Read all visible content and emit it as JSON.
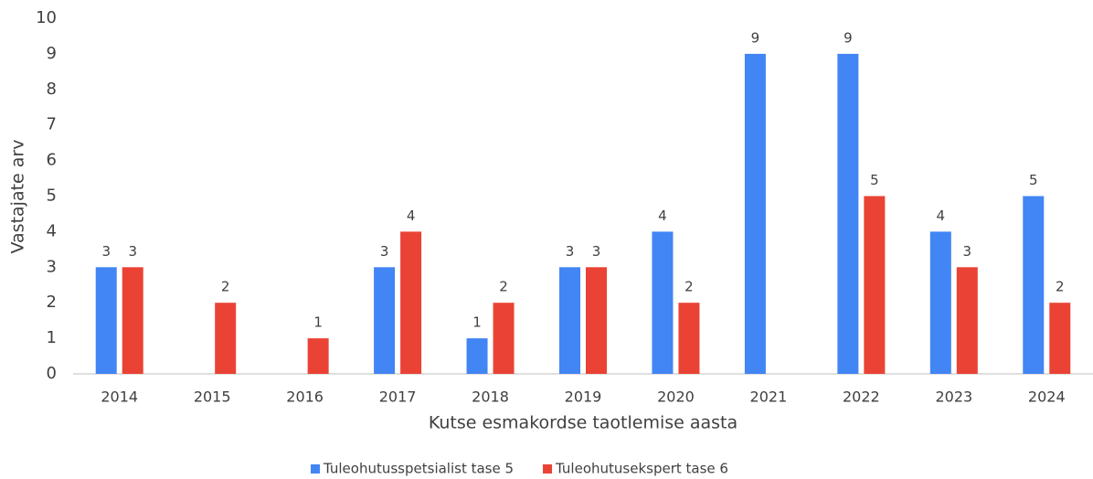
{
  "chart_data": {
    "type": "bar",
    "categories": [
      "2014",
      "2015",
      "2016",
      "2017",
      "2018",
      "2019",
      "2020",
      "2021",
      "2022",
      "2023",
      "2024"
    ],
    "series": [
      {
        "name": "Tuleohutusspetsialist tase 5",
        "color": "#4285f4",
        "values": [
          3,
          null,
          null,
          3,
          1,
          3,
          4,
          9,
          9,
          4,
          5
        ]
      },
      {
        "name": "Tuleohutusekspert tase 6",
        "color": "#ea4335",
        "values": [
          3,
          2,
          1,
          4,
          2,
          3,
          2,
          null,
          5,
          3,
          2
        ]
      }
    ],
    "xlabel": "Kutse esmakordse taotlemise aasta",
    "ylabel": "Vastajate arv",
    "ylim": [
      0,
      10
    ],
    "yticks": [
      0,
      1,
      2,
      3,
      4,
      5,
      6,
      7,
      8,
      9,
      10
    ],
    "grid": false,
    "legend": "bottom"
  }
}
